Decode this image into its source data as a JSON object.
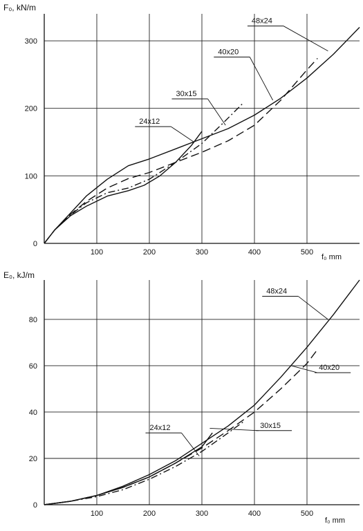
{
  "chart_data": [
    {
      "type": "line",
      "ylabel": "F₀, kN/m",
      "xlabel": "f₀ mm",
      "xlim": [
        0,
        600
      ],
      "ylim": [
        0,
        340
      ],
      "xticks": [
        100,
        200,
        300,
        400,
        500
      ],
      "yticks": [
        0,
        100,
        200,
        300
      ],
      "grid": true,
      "series": [
        {
          "name": "48x24",
          "dash": "solid",
          "x": [
            0,
            20,
            50,
            80,
            120,
            160,
            200,
            250,
            300,
            350,
            400,
            450,
            500,
            550,
            600
          ],
          "y": [
            0,
            20,
            45,
            70,
            95,
            115,
            125,
            140,
            155,
            170,
            190,
            215,
            245,
            280,
            320
          ]
        },
        {
          "name": "40x20",
          "dash": "long",
          "x": [
            0,
            20,
            50,
            80,
            120,
            160,
            200,
            250,
            300,
            350,
            400,
            450,
            500,
            520
          ],
          "y": [
            0,
            20,
            43,
            62,
            82,
            96,
            105,
            120,
            135,
            152,
            175,
            212,
            257,
            274
          ]
        },
        {
          "name": "30x15",
          "dash": "dashdot",
          "x": [
            0,
            20,
            50,
            80,
            120,
            160,
            200,
            250,
            300,
            340,
            380
          ],
          "y": [
            0,
            20,
            42,
            60,
            75,
            82,
            95,
            120,
            148,
            178,
            209
          ]
        },
        {
          "name": "24x12",
          "dash": "solid",
          "x": [
            0,
            20,
            50,
            80,
            120,
            160,
            190,
            220,
            250,
            280,
            300
          ],
          "y": [
            0,
            20,
            41,
            55,
            70,
            78,
            86,
            100,
            120,
            145,
            166
          ]
        }
      ],
      "annotations": [
        {
          "text": "48x24",
          "label_x": 392,
          "label_y": 322,
          "leader_to": [
            540,
            285
          ]
        },
        {
          "text": "40x20",
          "label_x": 328,
          "label_y": 276,
          "leader_to": [
            435,
            212
          ]
        },
        {
          "text": "30x15",
          "label_x": 248,
          "label_y": 214,
          "leader_to": [
            345,
            175
          ]
        },
        {
          "text": "24x12",
          "label_x": 178,
          "label_y": 173,
          "leader_to": [
            285,
            150
          ]
        }
      ]
    },
    {
      "type": "line",
      "ylabel": "E₀, kJ/m",
      "xlabel": "f₀ mm",
      "xlim": [
        0,
        600
      ],
      "ylim": [
        0,
        97
      ],
      "xticks": [
        100,
        200,
        300,
        400,
        500
      ],
      "yticks": [
        0,
        20,
        40,
        60,
        80
      ],
      "grid": true,
      "series": [
        {
          "name": "48x24",
          "dash": "solid",
          "x": [
            0,
            50,
            100,
            150,
            200,
            250,
            300,
            350,
            400,
            450,
            500,
            550,
            600
          ],
          "y": [
            0,
            1.5,
            4,
            8,
            13,
            19,
            26.5,
            34,
            43,
            55,
            68,
            82,
            97
          ]
        },
        {
          "name": "40x20",
          "dash": "long",
          "x": [
            0,
            50,
            100,
            150,
            200,
            250,
            300,
            350,
            400,
            450,
            500,
            520
          ],
          "y": [
            0,
            1.5,
            4,
            7.5,
            12,
            18,
            24.5,
            32,
            40,
            50,
            61,
            67
          ]
        },
        {
          "name": "30x15",
          "dash": "dashdot",
          "x": [
            0,
            50,
            100,
            150,
            200,
            250,
            300,
            350,
            380
          ],
          "y": [
            0,
            1.5,
            3.5,
            6.5,
            11,
            16.5,
            23,
            31,
            36
          ]
        },
        {
          "name": "24x12",
          "dash": "solid",
          "x": [
            0,
            50,
            100,
            150,
            200,
            250,
            300,
            320
          ],
          "y": [
            0,
            1.5,
            4,
            7.5,
            12,
            18,
            25,
            31
          ]
        }
      ],
      "annotations": [
        {
          "text": "48x24",
          "label_x": 420,
          "label_y": 90,
          "leader_to": [
            540,
            80
          ]
        },
        {
          "text": "40x20",
          "label_x": 520,
          "label_y": 57,
          "leader_to": [
            470,
            60
          ]
        },
        {
          "text": "24x12",
          "label_x": 198,
          "label_y": 31,
          "leader_to": [
            295,
            21
          ]
        },
        {
          "text": "30x15",
          "label_x": 408,
          "label_y": 32,
          "leader_to": [
            315,
            33
          ]
        }
      ]
    }
  ]
}
